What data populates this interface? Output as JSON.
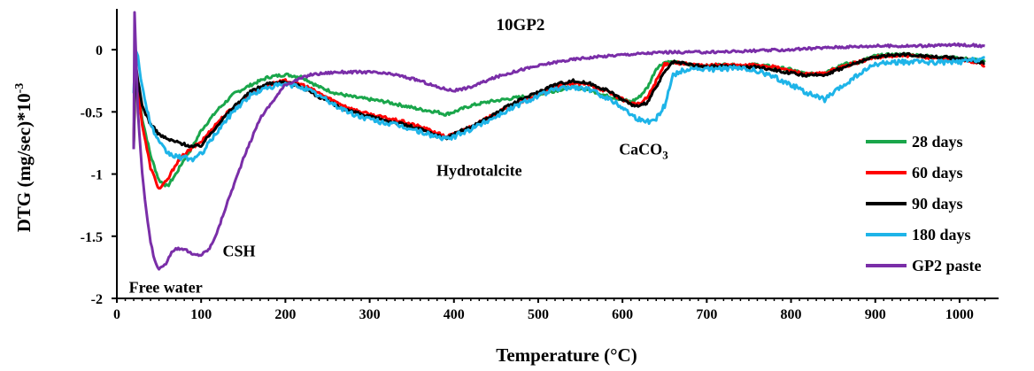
{
  "chart_data": {
    "type": "line",
    "title": "10GP2",
    "xlabel": "Temperature (°C)",
    "ylabel_main": "DTG (mg/sec)*10",
    "ylabel_sup": "-3",
    "xlim": [
      0,
      1040
    ],
    "ylim": [
      -2,
      0.3
    ],
    "x_ticks": [
      0,
      100,
      200,
      300,
      400,
      500,
      600,
      700,
      800,
      900,
      1000
    ],
    "x_tick_labels": [
      "0",
      "100",
      "200",
      "300",
      "400",
      "500",
      "600",
      "700",
      "800",
      "900",
      "1000"
    ],
    "y_ticks": [
      0,
      -0.5,
      -1,
      -1.5,
      -2
    ],
    "y_tick_labels": [
      "0",
      "-0.5",
      "-1",
      "-1.5",
      "-2"
    ],
    "grid": false,
    "legend_position": "right",
    "annotations": [
      {
        "text": "Free water",
        "x": 58,
        "y": -1.91
      },
      {
        "text": "CSH",
        "x": 145,
        "y": -1.62
      },
      {
        "text": "Hydrotalcite",
        "x": 430,
        "y": -0.97
      },
      {
        "text": "CaCO",
        "sub": "3",
        "x": 625,
        "y": -0.8
      }
    ],
    "series": [
      {
        "name": "28 days",
        "color": "#1aa64b",
        "noise": 0.012,
        "x": [
          20,
          22,
          25,
          30,
          40,
          50,
          60,
          70,
          80,
          90,
          100,
          120,
          140,
          160,
          180,
          200,
          220,
          240,
          260,
          280,
          300,
          320,
          340,
          360,
          380,
          390,
          400,
          420,
          440,
          460,
          480,
          500,
          520,
          540,
          560,
          580,
          600,
          610,
          620,
          630,
          640,
          650,
          660,
          680,
          700,
          720,
          740,
          760,
          780,
          800,
          820,
          840,
          860,
          880,
          900,
          920,
          940,
          960,
          980,
          1000,
          1020,
          1030
        ],
        "y": [
          -0.75,
          -0.1,
          -0.3,
          -0.55,
          -0.85,
          -1.05,
          -1.1,
          -1.0,
          -0.88,
          -0.78,
          -0.65,
          -0.48,
          -0.35,
          -0.28,
          -0.22,
          -0.2,
          -0.22,
          -0.3,
          -0.35,
          -0.38,
          -0.4,
          -0.42,
          -0.45,
          -0.48,
          -0.5,
          -0.52,
          -0.5,
          -0.45,
          -0.42,
          -0.4,
          -0.38,
          -0.36,
          -0.33,
          -0.3,
          -0.32,
          -0.37,
          -0.4,
          -0.42,
          -0.38,
          -0.3,
          -0.15,
          -0.1,
          -0.1,
          -0.12,
          -0.13,
          -0.12,
          -0.13,
          -0.12,
          -0.14,
          -0.16,
          -0.2,
          -0.18,
          -0.12,
          -0.1,
          -0.05,
          -0.04,
          -0.04,
          -0.05,
          -0.06,
          -0.07,
          -0.08,
          -0.1
        ]
      },
      {
        "name": "60 days",
        "color": "#ff0000",
        "noise": 0.012,
        "x": [
          20,
          22,
          25,
          30,
          40,
          50,
          60,
          70,
          80,
          90,
          100,
          120,
          140,
          160,
          180,
          200,
          220,
          240,
          260,
          280,
          300,
          320,
          340,
          360,
          380,
          390,
          400,
          420,
          440,
          460,
          480,
          500,
          520,
          540,
          560,
          580,
          600,
          610,
          620,
          630,
          640,
          650,
          660,
          680,
          700,
          720,
          740,
          760,
          780,
          800,
          820,
          840,
          860,
          880,
          900,
          920,
          940,
          960,
          980,
          1000,
          1020,
          1030
        ],
        "y": [
          -0.75,
          -0.1,
          -0.3,
          -0.6,
          -0.95,
          -1.12,
          -1.05,
          -0.92,
          -0.84,
          -0.79,
          -0.74,
          -0.58,
          -0.45,
          -0.35,
          -0.28,
          -0.25,
          -0.28,
          -0.35,
          -0.42,
          -0.48,
          -0.52,
          -0.55,
          -0.58,
          -0.62,
          -0.67,
          -0.7,
          -0.68,
          -0.62,
          -0.55,
          -0.48,
          -0.42,
          -0.36,
          -0.3,
          -0.27,
          -0.28,
          -0.33,
          -0.4,
          -0.43,
          -0.44,
          -0.38,
          -0.25,
          -0.12,
          -0.1,
          -0.12,
          -0.13,
          -0.12,
          -0.13,
          -0.12,
          -0.14,
          -0.17,
          -0.2,
          -0.19,
          -0.14,
          -0.1,
          -0.06,
          -0.05,
          -0.05,
          -0.06,
          -0.07,
          -0.08,
          -0.1,
          -0.13
        ]
      },
      {
        "name": "90 days",
        "color": "#000000",
        "noise": 0.012,
        "x": [
          20,
          22,
          25,
          30,
          40,
          50,
          60,
          70,
          80,
          90,
          100,
          120,
          140,
          160,
          180,
          200,
          220,
          240,
          260,
          280,
          300,
          320,
          340,
          360,
          380,
          390,
          400,
          420,
          440,
          460,
          480,
          500,
          520,
          540,
          560,
          580,
          600,
          610,
          620,
          630,
          640,
          650,
          660,
          680,
          700,
          720,
          740,
          760,
          780,
          800,
          820,
          840,
          860,
          880,
          900,
          920,
          940,
          960,
          980,
          1000,
          1020,
          1030
        ],
        "y": [
          -0.8,
          -0.1,
          -0.25,
          -0.45,
          -0.6,
          -0.68,
          -0.72,
          -0.74,
          -0.76,
          -0.78,
          -0.77,
          -0.6,
          -0.45,
          -0.33,
          -0.27,
          -0.26,
          -0.3,
          -0.38,
          -0.45,
          -0.5,
          -0.54,
          -0.57,
          -0.6,
          -0.64,
          -0.69,
          -0.71,
          -0.68,
          -0.62,
          -0.55,
          -0.47,
          -0.4,
          -0.34,
          -0.28,
          -0.25,
          -0.27,
          -0.32,
          -0.4,
          -0.44,
          -0.46,
          -0.42,
          -0.3,
          -0.18,
          -0.1,
          -0.12,
          -0.14,
          -0.13,
          -0.14,
          -0.14,
          -0.16,
          -0.19,
          -0.21,
          -0.2,
          -0.15,
          -0.1,
          -0.06,
          -0.04,
          -0.04,
          -0.05,
          -0.06,
          -0.07,
          -0.09,
          -0.11
        ]
      },
      {
        "name": "180 days",
        "color": "#1eb4e8",
        "noise": 0.02,
        "x": [
          20,
          22,
          25,
          30,
          40,
          50,
          60,
          70,
          80,
          90,
          100,
          120,
          140,
          160,
          180,
          200,
          220,
          240,
          260,
          280,
          300,
          320,
          340,
          360,
          380,
          390,
          400,
          420,
          440,
          460,
          480,
          500,
          520,
          540,
          560,
          580,
          600,
          610,
          620,
          630,
          640,
          650,
          660,
          680,
          700,
          720,
          740,
          760,
          780,
          800,
          820,
          840,
          860,
          880,
          900,
          920,
          940,
          960,
          980,
          1000,
          1020,
          1030
        ],
        "y": [
          -0.35,
          0.0,
          -0.05,
          -0.3,
          -0.6,
          -0.75,
          -0.83,
          -0.86,
          -0.87,
          -0.88,
          -0.84,
          -0.65,
          -0.48,
          -0.36,
          -0.3,
          -0.28,
          -0.3,
          -0.37,
          -0.45,
          -0.52,
          -0.56,
          -0.59,
          -0.62,
          -0.66,
          -0.7,
          -0.72,
          -0.7,
          -0.64,
          -0.57,
          -0.5,
          -0.43,
          -0.37,
          -0.32,
          -0.3,
          -0.32,
          -0.38,
          -0.46,
          -0.52,
          -0.56,
          -0.58,
          -0.55,
          -0.45,
          -0.2,
          -0.15,
          -0.16,
          -0.15,
          -0.15,
          -0.17,
          -0.22,
          -0.28,
          -0.35,
          -0.4,
          -0.3,
          -0.2,
          -0.12,
          -0.1,
          -0.1,
          -0.1,
          -0.1,
          -0.1,
          -0.08,
          -0.06
        ]
      },
      {
        "name": "GP2 paste",
        "color": "#7a2ea8",
        "noise": 0.01,
        "x": [
          20,
          21,
          22,
          25,
          30,
          35,
          40,
          45,
          50,
          55,
          60,
          65,
          70,
          80,
          90,
          100,
          110,
          120,
          130,
          150,
          170,
          200,
          230,
          260,
          300,
          330,
          360,
          380,
          400,
          420,
          450,
          480,
          500,
          520,
          550,
          600,
          650,
          700,
          750,
          800,
          850,
          900,
          950,
          1000,
          1030
        ],
        "y": [
          -0.8,
          0.3,
          0.1,
          -0.5,
          -1.0,
          -1.3,
          -1.55,
          -1.7,
          -1.76,
          -1.75,
          -1.7,
          -1.62,
          -1.6,
          -1.6,
          -1.65,
          -1.65,
          -1.6,
          -1.45,
          -1.25,
          -0.88,
          -0.55,
          -0.28,
          -0.2,
          -0.18,
          -0.18,
          -0.2,
          -0.25,
          -0.3,
          -0.33,
          -0.3,
          -0.22,
          -0.16,
          -0.13,
          -0.1,
          -0.07,
          -0.04,
          -0.02,
          -0.02,
          -0.01,
          0.0,
          0.02,
          0.03,
          0.03,
          0.04,
          0.03
        ]
      }
    ]
  }
}
